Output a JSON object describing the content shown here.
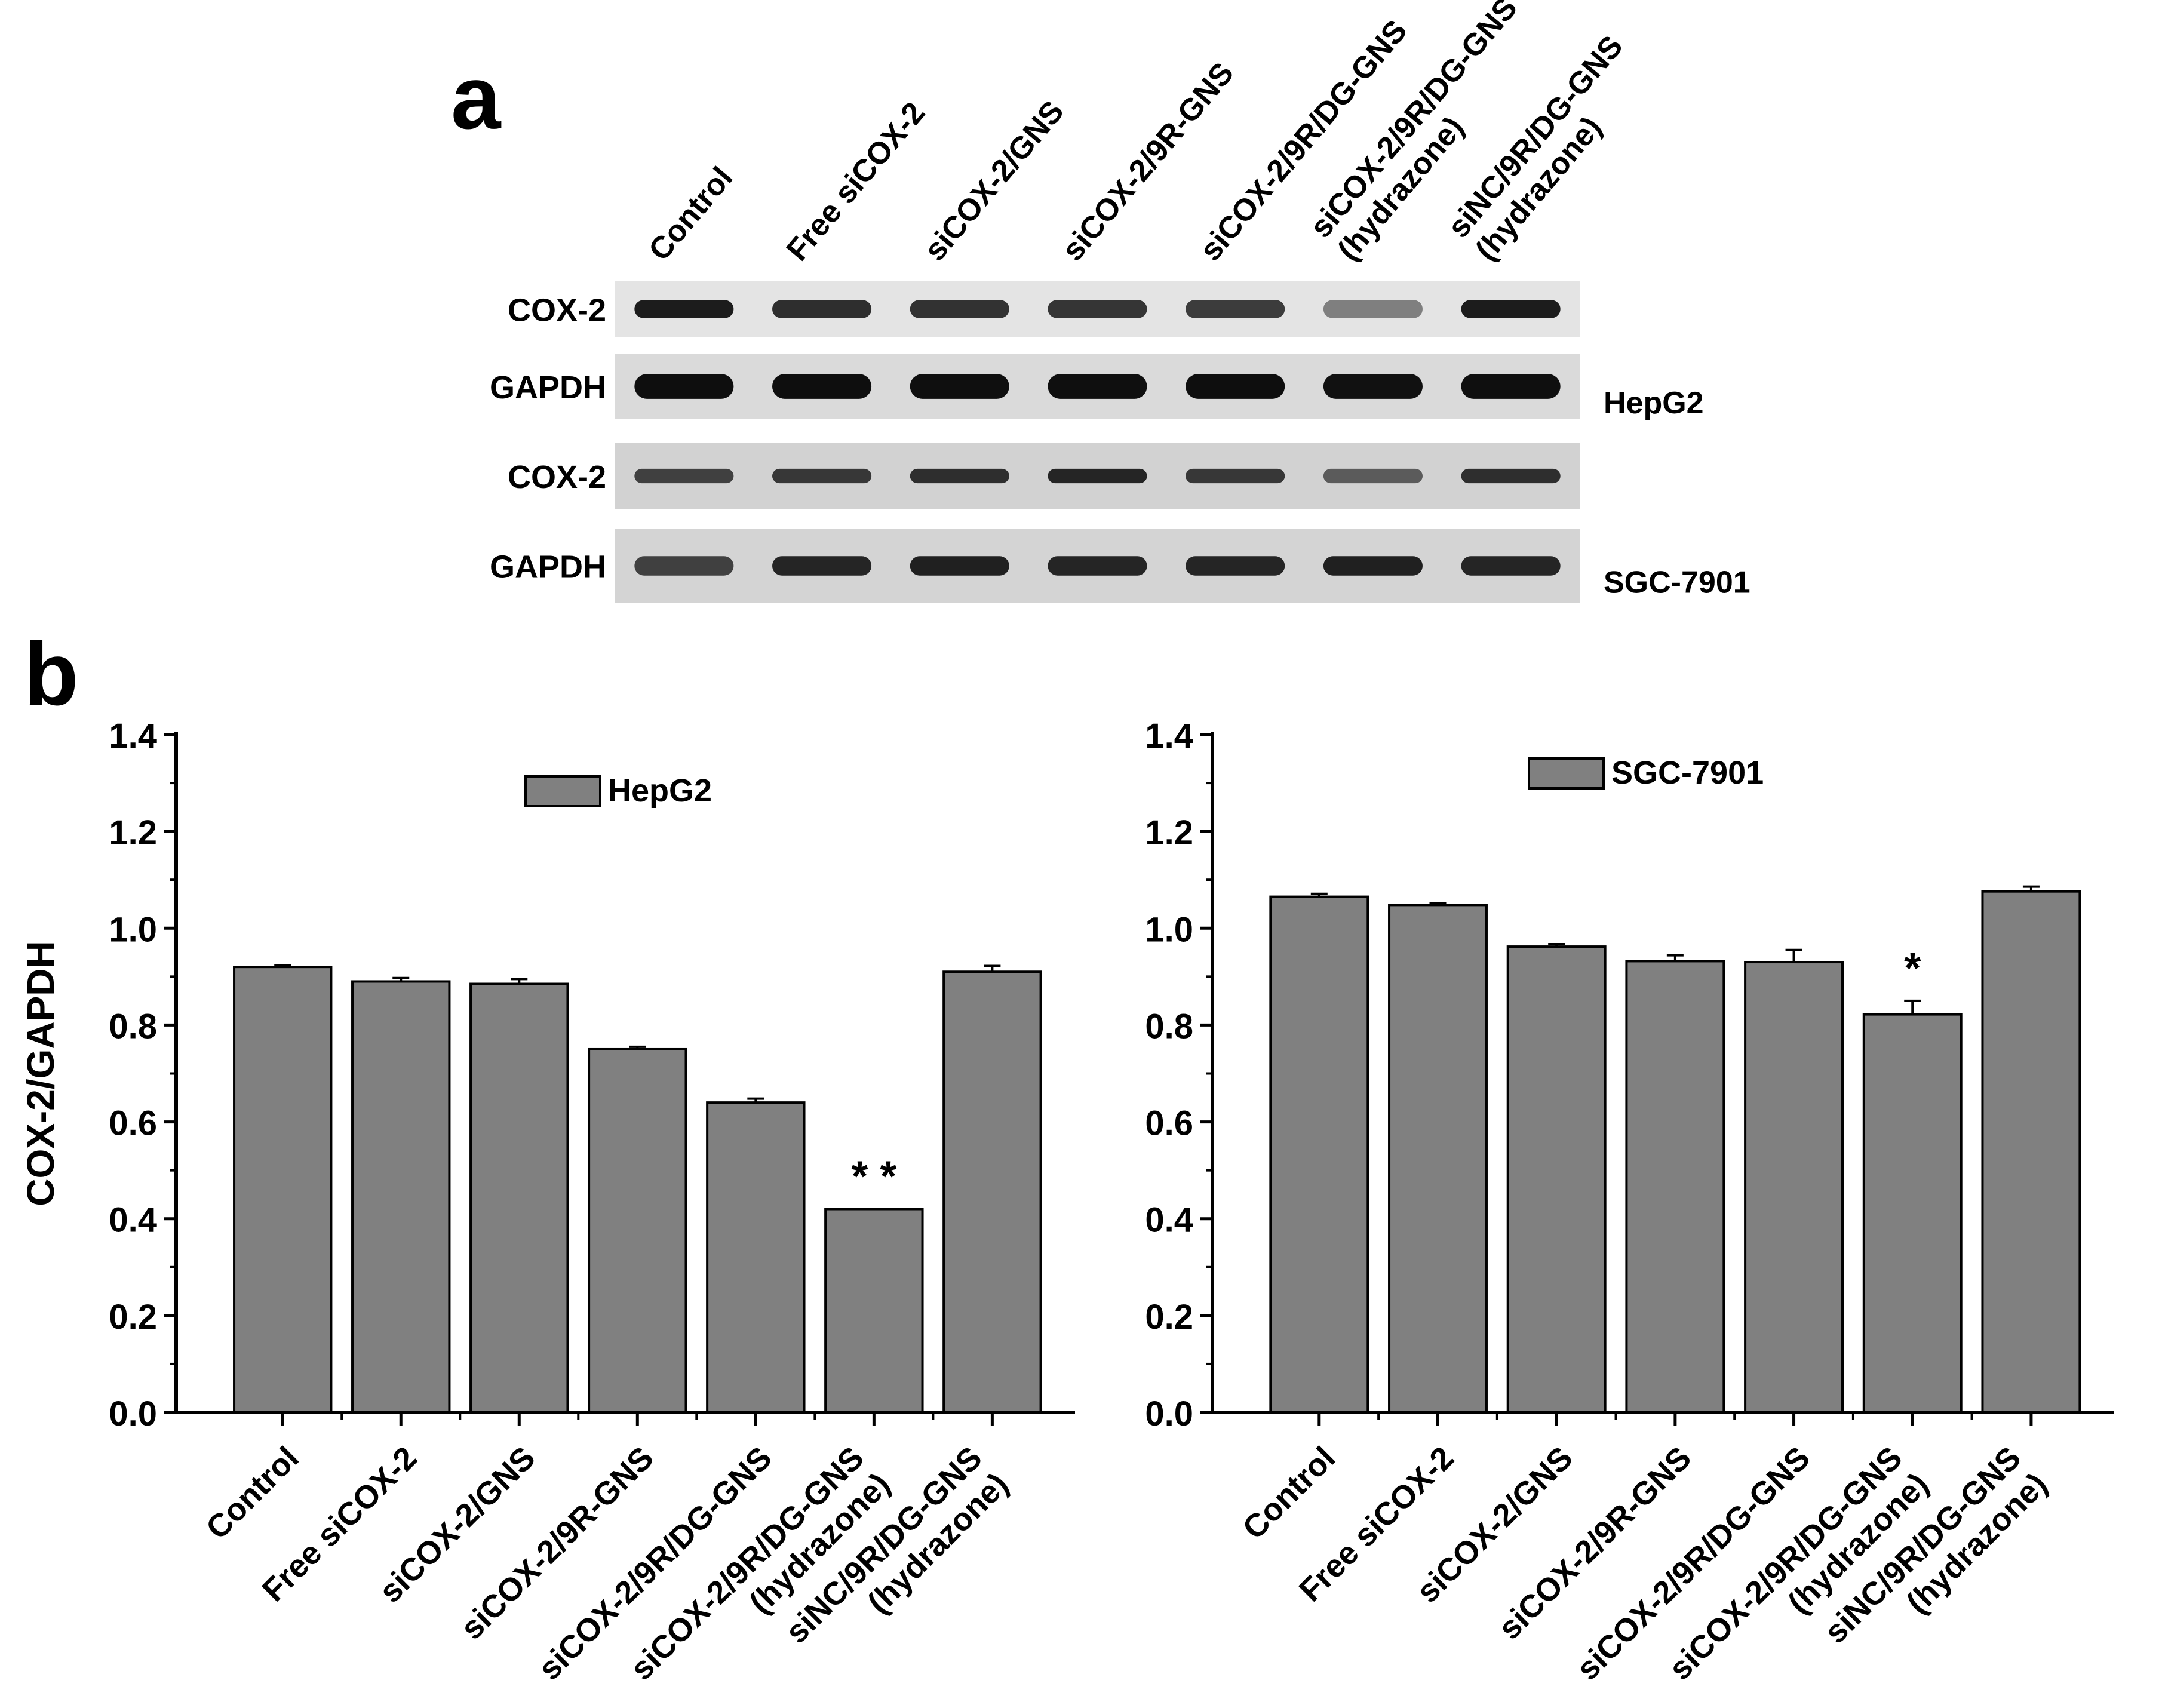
{
  "panel_a": {
    "letter": "a",
    "lanes": [
      "Control",
      "Free siCOX-2",
      "siCOX-2/GNS",
      "siCOX-2/9R-GNS",
      "siCOX-2/9R/DG-GNS",
      [
        "siCOX-2/9R/DG-GNS",
        "(hydrazone)"
      ],
      [
        "siNC/9R/DG-GNS",
        "(hydrazone)"
      ]
    ],
    "blots": [
      {
        "label": "COX-2",
        "cell_line": "",
        "intensity": [
          0.9,
          0.8,
          0.78,
          0.76,
          0.72,
          0.35,
          0.9
        ],
        "band_height": 0.32,
        "background": "#e4e4e4"
      },
      {
        "label": "GAPDH",
        "cell_line": "HepG2",
        "intensity": [
          0.98,
          0.98,
          0.97,
          0.97,
          0.98,
          0.96,
          0.97
        ],
        "band_height": 0.38,
        "background": "#dadada"
      },
      {
        "label": "COX-2",
        "cell_line": "",
        "intensity": [
          0.7,
          0.75,
          0.8,
          0.85,
          0.75,
          0.55,
          0.8
        ],
        "band_height": 0.22,
        "background": "#d2d2d2"
      },
      {
        "label": "GAPDH",
        "cell_line": "SGC-7901",
        "intensity": [
          0.7,
          0.85,
          0.88,
          0.85,
          0.85,
          0.88,
          0.85
        ],
        "band_height": 0.26,
        "background": "#d4d4d4"
      }
    ]
  },
  "panel_b": {
    "letter": "b"
  },
  "colors": {
    "bar": "#808080",
    "bar_edge": "#000000"
  },
  "chart_data": [
    {
      "type": "bar",
      "title": "",
      "ylabel": "COX-2/GAPDH",
      "xlabel": "",
      "ylim": [
        0,
        1.4
      ],
      "yticks": [
        0.0,
        0.2,
        0.4,
        0.6,
        0.8,
        1.0,
        1.2,
        1.4
      ],
      "categories": [
        "Control",
        "Free siCOX-2",
        "siCOX-2/GNS",
        "siCOX-2/9R-GNS",
        "siCOX-2/9R/DG-GNS",
        [
          "siCOX-2/9R/DG-GNS",
          "(hydrazone)"
        ],
        [
          "siNC/9R/DG-GNS",
          "(hydrazone)"
        ]
      ],
      "series": [
        {
          "name": "HepG2",
          "values": [
            0.92,
            0.89,
            0.885,
            0.75,
            0.64,
            0.42,
            0.91
          ],
          "errors": [
            0.003,
            0.007,
            0.01,
            0.005,
            0.008,
            0,
            0.012
          ]
        }
      ],
      "annotations": [
        {
          "category_index": 5,
          "text": "* *"
        }
      ],
      "legend": "top-center"
    },
    {
      "type": "bar",
      "title": "",
      "ylabel": "",
      "xlabel": "",
      "ylim": [
        0,
        1.4
      ],
      "yticks": [
        0.0,
        0.2,
        0.4,
        0.6,
        0.8,
        1.0,
        1.2,
        1.4
      ],
      "categories": [
        "Control",
        "Free siCOX-2",
        [
          "siCOX-2/GNS"
        ],
        "siCOX-2/9R-GNS",
        "siCOX-2/9R/DG-GNS",
        [
          "siCOX-2/9R/DG-GNS",
          "(hydrazone)"
        ],
        [
          "siNC/9R/DG-GNS",
          "(hydrazone)"
        ]
      ],
      "series": [
        {
          "name": "SGC-7901",
          "values": [
            1.065,
            1.048,
            0.962,
            0.932,
            0.93,
            0.822,
            1.076
          ],
          "errors": [
            0.006,
            0.004,
            0.005,
            0.012,
            0.025,
            0.028,
            0.01
          ]
        }
      ],
      "annotations": [
        {
          "category_index": 5,
          "text": "*"
        }
      ],
      "legend": "top-center"
    }
  ]
}
